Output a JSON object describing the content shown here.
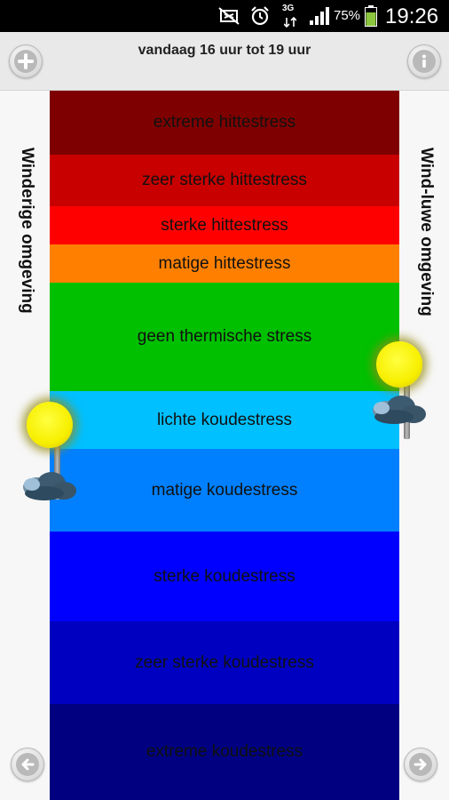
{
  "status_bar": {
    "network": "3G",
    "battery": "75%",
    "time": "19:26",
    "icons": [
      "mute-icon",
      "alarm-icon",
      "network-icon",
      "signal-icon",
      "battery-icon"
    ]
  },
  "header": {
    "title": "vandaag 16 uur tot 19 uur",
    "add_icon": "plus-icon",
    "info_icon": "info-icon"
  },
  "sides": {
    "left_label": "Winderige omgeving",
    "right_label": "Wind-luwe omgeving"
  },
  "scale": {
    "bands": [
      {
        "label": "extreme hittestress",
        "color": "#7e0000"
      },
      {
        "label": "zeer sterke hittestress",
        "color": "#c80000"
      },
      {
        "label": "sterke hittestress",
        "color": "#ff0000"
      },
      {
        "label": "matige hittestress",
        "color": "#ff8000"
      },
      {
        "label": "geen thermische stress",
        "color": "#00c000"
      },
      {
        "label": "lichte koudestress",
        "color": "#00c0ff"
      },
      {
        "label": "matige koudestress",
        "color": "#0080ff"
      },
      {
        "label": "sterke koudestress",
        "color": "#0000ff"
      },
      {
        "label": "zeer sterke koudestress",
        "color": "#0000c0"
      },
      {
        "label": "extreme koudestress",
        "color": "#000080"
      }
    ]
  },
  "markers": {
    "left": {
      "icon": "sun-cloud-icon",
      "level": "lichte koudestress"
    },
    "right": {
      "icon": "sun-cloud-icon",
      "level": "geen thermische stress"
    }
  },
  "navigation": {
    "prev_icon": "arrow-left-icon",
    "next_icon": "arrow-right-icon"
  }
}
